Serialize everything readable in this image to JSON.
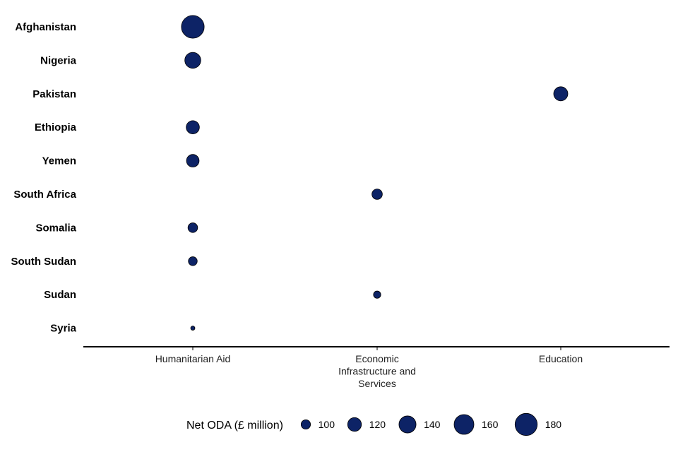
{
  "chart_data": {
    "type": "scatter",
    "title": "",
    "xlabel": "",
    "ylabel": "",
    "x_categories": [
      "Humanitarian Aid",
      "Economic Infrastructure and Services",
      "Education"
    ],
    "x_tick_lines": [
      [
        "Humanitarian Aid"
      ],
      [
        "Economic",
        "Infrastructure and",
        "Services"
      ],
      [
        "Education"
      ]
    ],
    "y_categories": [
      "Afghanistan",
      "Nigeria",
      "Pakistan",
      "Ethiopia",
      "Yemen",
      "South Africa",
      "Somalia",
      "South Sudan",
      "Sudan",
      "Syria"
    ],
    "points": [
      {
        "country": "Afghanistan",
        "sector": "Humanitarian Aid",
        "value": 185
      },
      {
        "country": "Nigeria",
        "sector": "Humanitarian Aid",
        "value": 133
      },
      {
        "country": "Pakistan",
        "sector": "Education",
        "value": 122
      },
      {
        "country": "Ethiopia",
        "sector": "Humanitarian Aid",
        "value": 117
      },
      {
        "country": "Yemen",
        "sector": "Humanitarian Aid",
        "value": 114
      },
      {
        "country": "South Africa",
        "sector": "Economic Infrastructure and Services",
        "value": 104
      },
      {
        "country": "Somalia",
        "sector": "Humanitarian Aid",
        "value": 101
      },
      {
        "country": "South Sudan",
        "sector": "Humanitarian Aid",
        "value": 98
      },
      {
        "country": "Sudan",
        "sector": "Economic Infrastructure and Services",
        "value": 93
      },
      {
        "country": "Syria",
        "sector": "Humanitarian Aid",
        "value": 86
      }
    ],
    "size_domain": [
      85,
      190
    ],
    "legend": {
      "title": "Net ODA (£ million)",
      "position": "bottom",
      "values": [
        100,
        120,
        140,
        160,
        180
      ],
      "labels": [
        "100",
        "120",
        "140",
        "160",
        "180"
      ]
    },
    "grid": false,
    "colors": {
      "marker": "#0d2366",
      "marker_edge": "#000000",
      "axis": "#000000"
    }
  }
}
